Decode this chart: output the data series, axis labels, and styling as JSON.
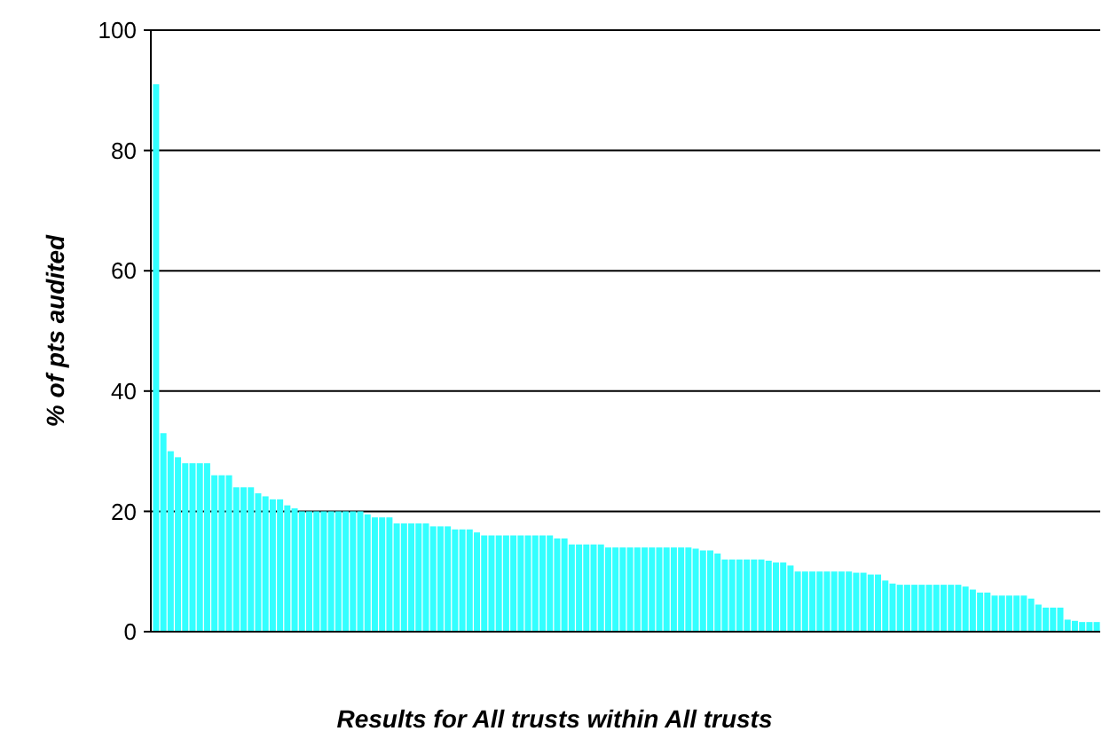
{
  "chart_data": {
    "type": "bar",
    "xlabel": "Results for All trusts within All trusts",
    "ylabel": "% of pts audited",
    "color": "#33ffff",
    "categories": [
      null,
      null,
      null,
      null,
      null,
      null,
      null,
      null,
      null,
      null,
      null,
      null,
      null,
      null,
      null,
      null,
      null,
      null,
      null,
      null,
      null,
      null,
      null,
      null,
      null,
      null,
      null,
      null,
      null,
      null,
      null,
      null,
      null,
      null,
      null,
      null,
      null,
      null,
      null,
      null,
      null,
      null,
      null,
      null,
      null,
      null,
      null,
      null,
      null,
      null,
      null,
      null,
      null,
      null,
      null,
      null,
      null,
      null,
      null,
      null,
      null,
      null,
      null,
      null,
      null,
      null,
      null,
      null,
      null,
      null,
      null,
      null,
      null,
      null,
      null,
      null,
      null,
      null,
      null,
      null,
      null,
      null,
      null,
      null,
      null,
      null,
      null,
      null,
      null,
      null,
      null,
      null,
      null,
      null,
      null,
      null,
      null,
      null,
      null,
      null,
      null,
      null,
      null,
      null,
      null,
      null,
      null,
      null,
      null,
      null,
      null,
      null,
      null,
      null,
      null,
      null,
      null,
      null,
      null,
      null,
      null,
      null,
      null,
      null,
      null,
      null,
      null,
      null,
      null,
      null
    ],
    "values": [
      91,
      33,
      30,
      29,
      28,
      28,
      28,
      28,
      26,
      26,
      26,
      24,
      24,
      24,
      23,
      22.5,
      22,
      22,
      21,
      20.5,
      20,
      20,
      20,
      20,
      20,
      20,
      20,
      20,
      20,
      19.5,
      19,
      19,
      19,
      18,
      18,
      18,
      18,
      18,
      17.5,
      17.5,
      17.5,
      17,
      17,
      17,
      16.5,
      16,
      16,
      16,
      16,
      16,
      16,
      16,
      16,
      16,
      16,
      15.5,
      15.5,
      14.5,
      14.5,
      14.5,
      14.5,
      14.5,
      14,
      14,
      14,
      14,
      14,
      14,
      14,
      14,
      14,
      14,
      14,
      14,
      13.8,
      13.5,
      13.5,
      13,
      12,
      12,
      12,
      12,
      12,
      12,
      11.8,
      11.5,
      11.5,
      11,
      10,
      10,
      10,
      10,
      10,
      10,
      10,
      10,
      9.8,
      9.8,
      9.5,
      9.5,
      8.5,
      8,
      7.8,
      7.8,
      7.8,
      7.8,
      7.8,
      7.8,
      7.8,
      7.8,
      7.8,
      7.5,
      7,
      6.5,
      6.5,
      6,
      6,
      6,
      6,
      6,
      5.5,
      4.5,
      4,
      4,
      4,
      2,
      1.8,
      1.6,
      1.6,
      1.6
    ],
    "ylim": [
      0,
      100
    ],
    "yticks": [
      0,
      20,
      40,
      60,
      80,
      100
    ],
    "grid": "y"
  }
}
